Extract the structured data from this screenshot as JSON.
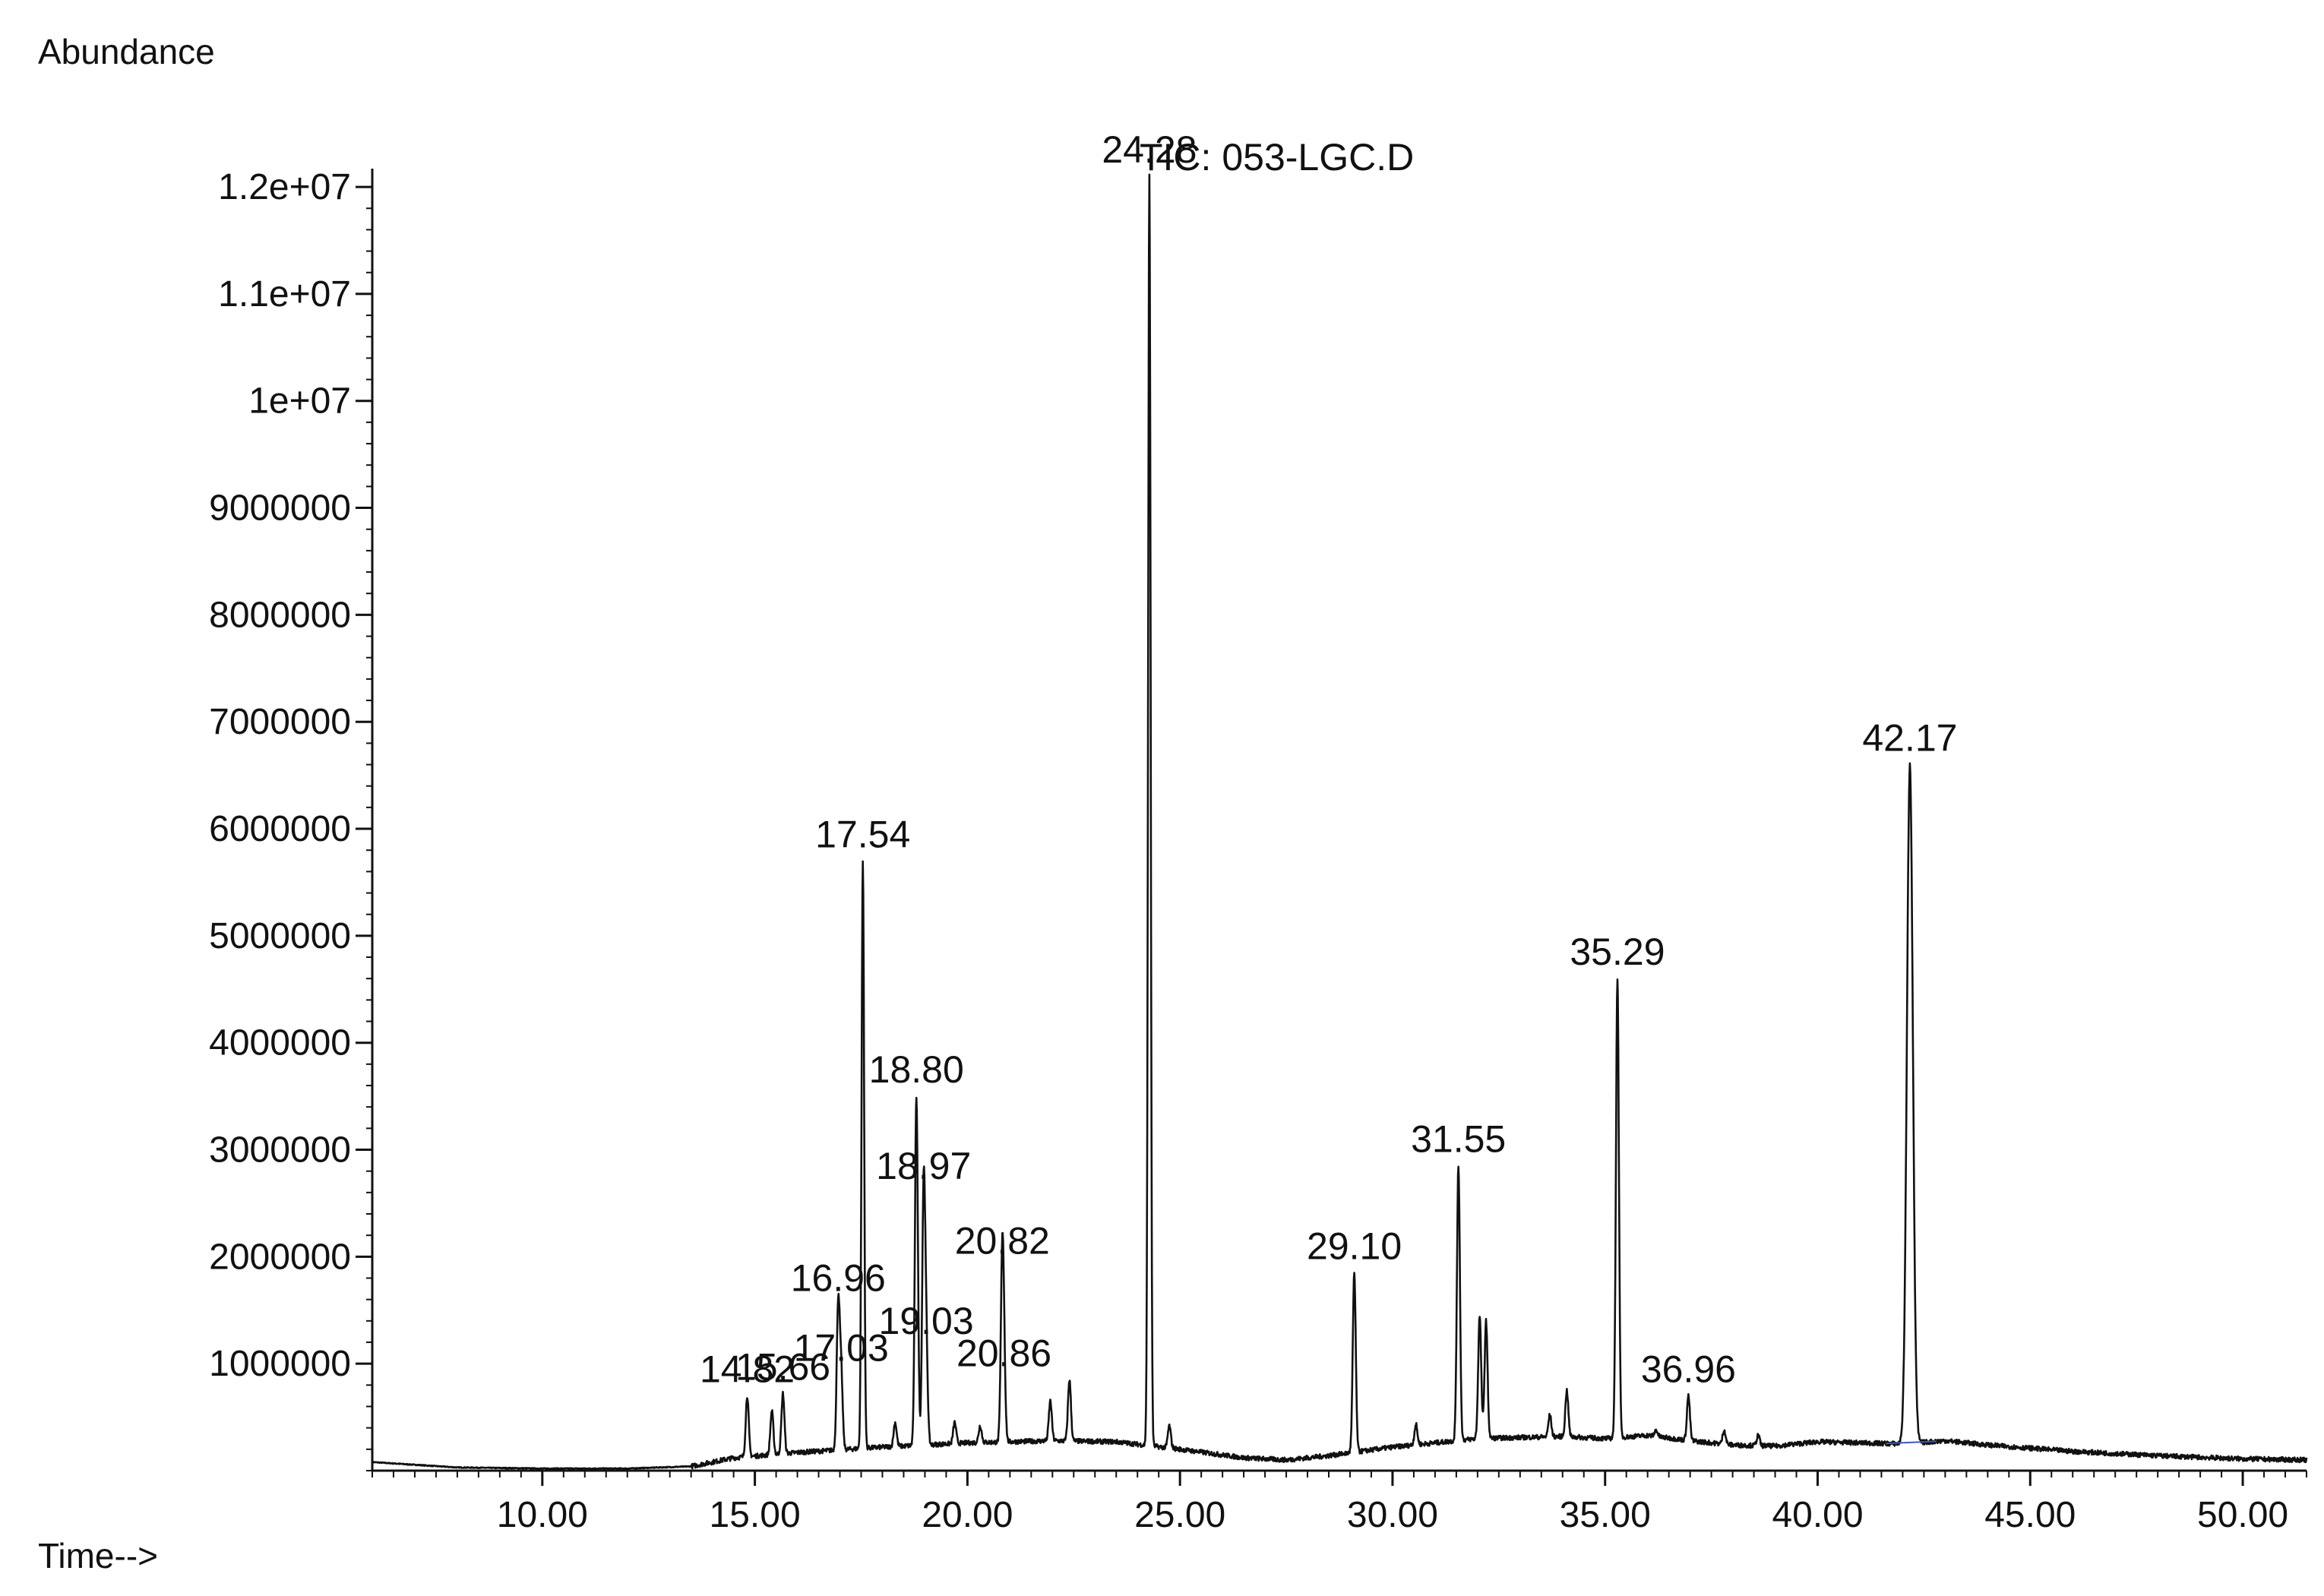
{
  "chart_data": {
    "type": "line",
    "title": "TIC: 053-LGC.D",
    "ylabel": "Abundance",
    "xlabel": "Time-->",
    "xlim": [
      6.0,
      51.5
    ],
    "ylim": [
      0,
      12100000
    ],
    "grid": false,
    "x_ticks": [
      {
        "value": 10,
        "label": "10.00"
      },
      {
        "value": 15,
        "label": "15.00"
      },
      {
        "value": 20,
        "label": "20.00"
      },
      {
        "value": 25,
        "label": "25.00"
      },
      {
        "value": 30,
        "label": "30.00"
      },
      {
        "value": 35,
        "label": "35.00"
      },
      {
        "value": 40,
        "label": "40.00"
      },
      {
        "value": 45,
        "label": "45.00"
      },
      {
        "value": 50,
        "label": "50.00"
      }
    ],
    "y_ticks": [
      {
        "value": 1000000,
        "label": "1000000"
      },
      {
        "value": 2000000,
        "label": "2000000"
      },
      {
        "value": 3000000,
        "label": "3000000"
      },
      {
        "value": 4000000,
        "label": "4000000"
      },
      {
        "value": 5000000,
        "label": "5000000"
      },
      {
        "value": 6000000,
        "label": "6000000"
      },
      {
        "value": 7000000,
        "label": "7000000"
      },
      {
        "value": 8000000,
        "label": "8000000"
      },
      {
        "value": 9000000,
        "label": "9000000"
      },
      {
        "value": 10000000,
        "label": "1e+07"
      },
      {
        "value": 11000000,
        "label": "1.1e+07"
      },
      {
        "value": 12000000,
        "label": "1.2e+07"
      }
    ],
    "baseline": [
      [
        6.0,
        80000
      ],
      [
        8.0,
        30000
      ],
      [
        10.0,
        20000
      ],
      [
        12.0,
        20000
      ],
      [
        13.5,
        40000
      ],
      [
        14.5,
        120000
      ],
      [
        16.0,
        170000
      ],
      [
        18.0,
        220000
      ],
      [
        20.0,
        260000
      ],
      [
        22.0,
        280000
      ],
      [
        23.5,
        270000
      ],
      [
        25.0,
        200000
      ],
      [
        26.5,
        120000
      ],
      [
        27.5,
        100000
      ],
      [
        28.5,
        140000
      ],
      [
        30.0,
        220000
      ],
      [
        31.0,
        260000
      ],
      [
        32.0,
        300000
      ],
      [
        33.0,
        310000
      ],
      [
        34.0,
        320000
      ],
      [
        35.0,
        300000
      ],
      [
        36.0,
        330000
      ],
      [
        37.0,
        280000
      ],
      [
        38.0,
        240000
      ],
      [
        39.0,
        230000
      ],
      [
        40.0,
        270000
      ],
      [
        41.0,
        260000
      ],
      [
        42.0,
        250000
      ],
      [
        43.0,
        280000
      ],
      [
        44.0,
        240000
      ],
      [
        46.0,
        180000
      ],
      [
        48.0,
        140000
      ],
      [
        50.0,
        110000
      ],
      [
        51.5,
        100000
      ]
    ],
    "peaks": [
      {
        "rt": 14.82,
        "abundance": 700000
      },
      {
        "rt": 15.4,
        "abundance": 560000
      },
      {
        "rt": 15.66,
        "abundance": 720000
      },
      {
        "rt": 16.96,
        "abundance": 1550000
      },
      {
        "rt": 17.03,
        "abundance": 900000
      },
      {
        "rt": 17.54,
        "abundance": 5700000
      },
      {
        "rt": 18.3,
        "abundance": 450000
      },
      {
        "rt": 18.8,
        "abundance": 3500000
      },
      {
        "rt": 18.97,
        "abundance": 2600000
      },
      {
        "rt": 19.03,
        "abundance": 1150000
      },
      {
        "rt": 19.7,
        "abundance": 450000
      },
      {
        "rt": 20.3,
        "abundance": 420000
      },
      {
        "rt": 20.82,
        "abundance": 1900000
      },
      {
        "rt": 20.86,
        "abundance": 850000
      },
      {
        "rt": 21.95,
        "abundance": 650000
      },
      {
        "rt": 22.4,
        "abundance": 850000
      },
      {
        "rt": 24.28,
        "abundance": 12100000
      },
      {
        "rt": 24.75,
        "abundance": 420000
      },
      {
        "rt": 29.1,
        "abundance": 1850000
      },
      {
        "rt": 30.55,
        "abundance": 430000
      },
      {
        "rt": 31.55,
        "abundance": 2850000
      },
      {
        "rt": 32.05,
        "abundance": 1450000
      },
      {
        "rt": 32.2,
        "abundance": 1400000
      },
      {
        "rt": 33.7,
        "abundance": 520000
      },
      {
        "rt": 34.1,
        "abundance": 750000
      },
      {
        "rt": 35.29,
        "abundance": 4600000
      },
      {
        "rt": 36.2,
        "abundance": 380000
      },
      {
        "rt": 36.96,
        "abundance": 700000
      },
      {
        "rt": 37.8,
        "abundance": 380000
      },
      {
        "rt": 38.6,
        "abundance": 330000
      },
      {
        "rt": 42.17,
        "abundance": 6600000
      }
    ],
    "peak_labels": [
      {
        "rt": 14.82,
        "text": "14.82",
        "abundance": 700000
      },
      {
        "rt": 15.66,
        "text": "15.66",
        "abundance": 720000
      },
      {
        "rt": 16.96,
        "text": "16.96",
        "abundance": 1550000
      },
      {
        "rt": 17.03,
        "text": "17.03",
        "abundance": 900000
      },
      {
        "rt": 17.54,
        "text": "17.54",
        "abundance": 5700000
      },
      {
        "rt": 18.8,
        "text": "18.80",
        "abundance": 3500000
      },
      {
        "rt": 18.97,
        "text": "18.97",
        "abundance": 2600000
      },
      {
        "rt": 19.03,
        "text": "19.03",
        "abundance": 1150000
      },
      {
        "rt": 20.82,
        "text": "20.82",
        "abundance": 1900000
      },
      {
        "rt": 20.86,
        "text": "20.86",
        "abundance": 850000
      },
      {
        "rt": 24.28,
        "text": "24.28",
        "abundance": 12100000
      },
      {
        "rt": 29.1,
        "text": "29.10",
        "abundance": 1850000
      },
      {
        "rt": 31.55,
        "text": "31.55",
        "abundance": 2850000
      },
      {
        "rt": 35.29,
        "text": "35.29",
        "abundance": 4600000
      },
      {
        "rt": 36.96,
        "text": "36.96",
        "abundance": 700000
      },
      {
        "rt": 42.17,
        "text": "42.17",
        "abundance": 6600000
      }
    ],
    "colors": {
      "trace": "#111111",
      "axis": "#111111",
      "baseline_fit": "#3a57b5"
    }
  }
}
